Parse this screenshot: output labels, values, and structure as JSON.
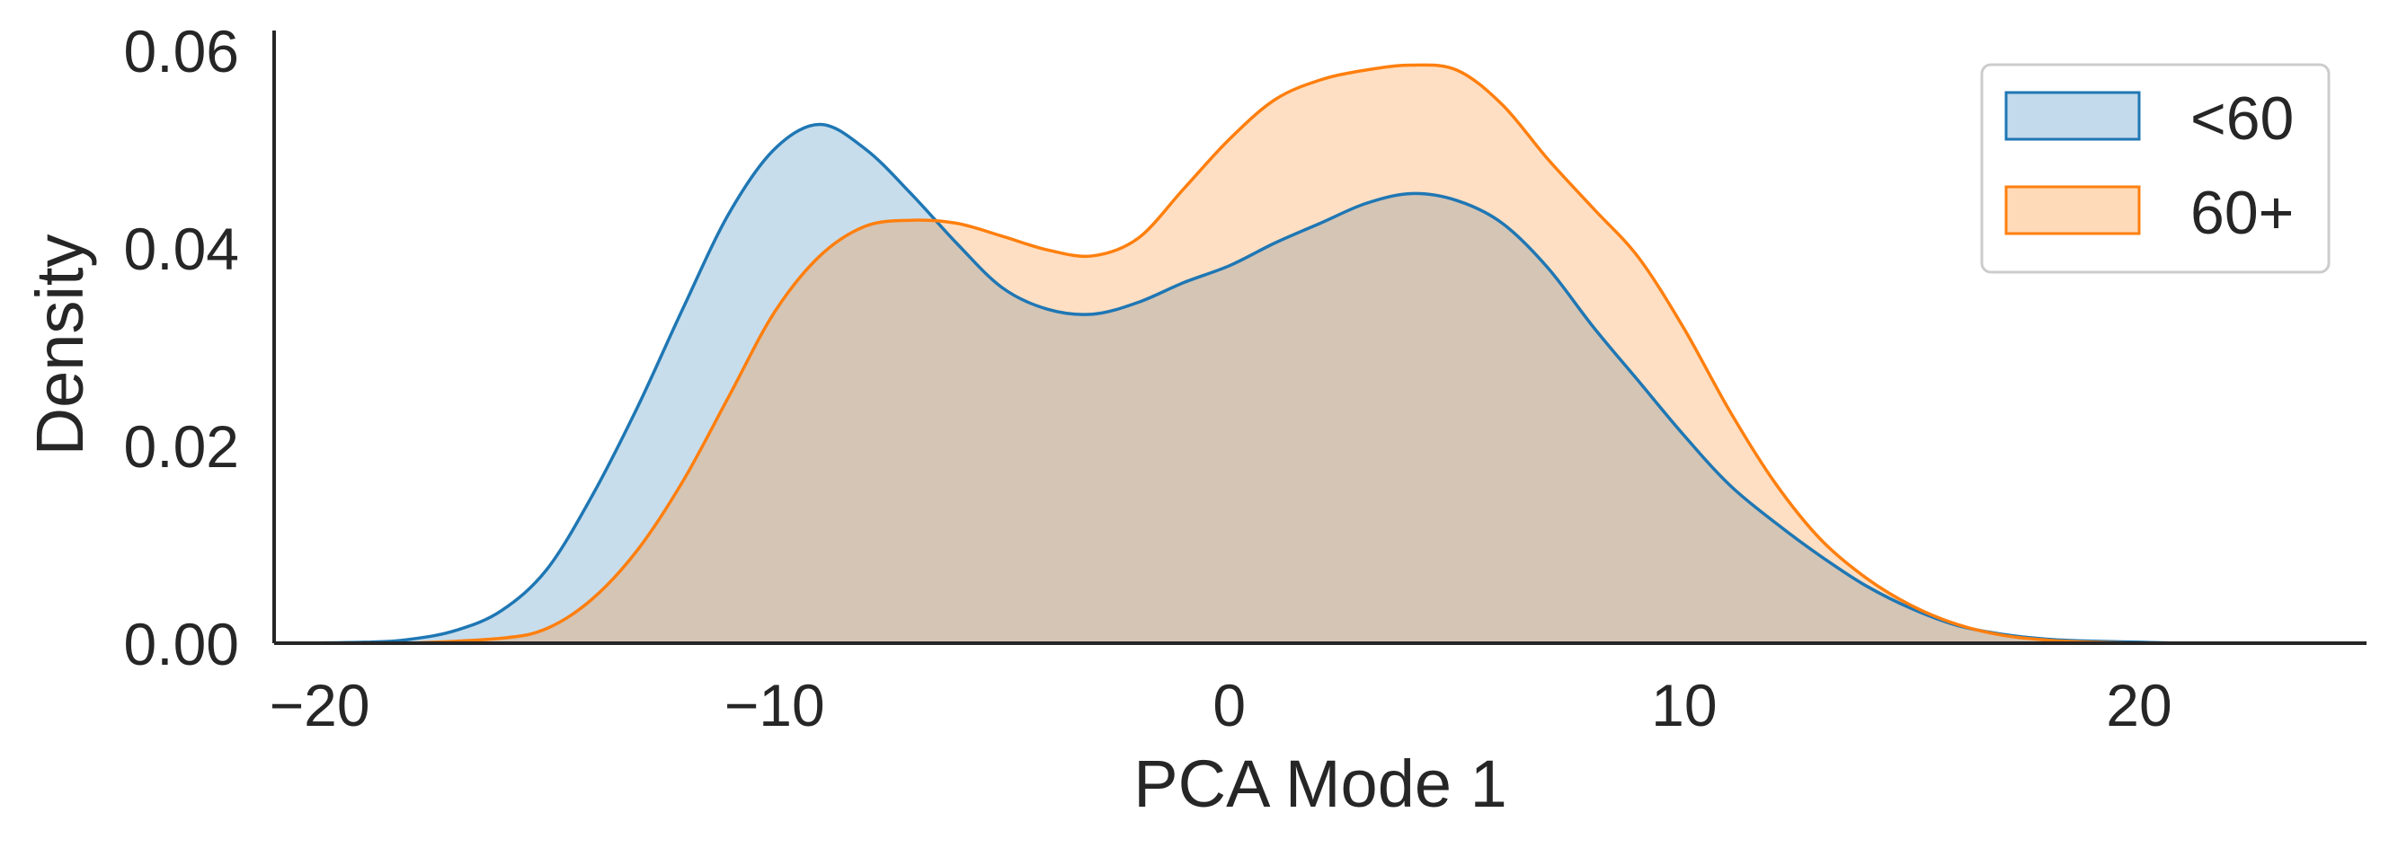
{
  "chart_data": {
    "type": "area",
    "title": "",
    "xlabel": "PCA Mode 1",
    "ylabel": "Density",
    "xlim": [
      -21,
      25
    ],
    "ylim": [
      0,
      0.062
    ],
    "xticks": [
      -20,
      -10,
      0,
      10,
      20
    ],
    "xtick_labels": [
      "−20",
      "−10",
      "0",
      "10",
      "20"
    ],
    "yticks": [
      0.0,
      0.02,
      0.04,
      0.06
    ],
    "ytick_labels": [
      "0.00",
      "0.02",
      "0.04",
      "0.06"
    ],
    "grid": false,
    "legend_position": "top-right",
    "series": [
      {
        "name": "<60",
        "color": "#1f77b4",
        "fill": "#c3d9ec",
        "x": [
          -21,
          -19,
          -18,
          -17,
          -16,
          -15,
          -14,
          -13,
          -12,
          -11,
          -10,
          -9,
          -8,
          -7,
          -6,
          -5,
          -4,
          -3,
          -2,
          -1,
          0,
          1,
          2,
          3,
          4,
          5,
          6,
          7,
          8,
          9,
          10,
          11,
          12,
          13,
          14,
          15,
          16,
          17,
          18,
          19,
          20,
          21,
          22,
          24
        ],
        "y": [
          0.0,
          0.0001,
          0.0004,
          0.0013,
          0.0033,
          0.0075,
          0.015,
          0.024,
          0.034,
          0.0435,
          0.05,
          0.0525,
          0.05,
          0.0455,
          0.0405,
          0.036,
          0.0338,
          0.0333,
          0.0345,
          0.0365,
          0.0382,
          0.0405,
          0.0425,
          0.0445,
          0.0455,
          0.0448,
          0.0425,
          0.038,
          0.032,
          0.0265,
          0.021,
          0.016,
          0.0122,
          0.0088,
          0.0058,
          0.0035,
          0.0018,
          0.0009,
          0.0004,
          0.0002,
          0.0001,
          0.0,
          0.0,
          0.0
        ]
      },
      {
        "name": "60+",
        "color": "#ff7f0e",
        "fill": "#ffdab9",
        "x": [
          -18,
          -16,
          -15,
          -14,
          -13,
          -12,
          -11,
          -10,
          -9,
          -8,
          -7,
          -6,
          -5,
          -4,
          -3,
          -2,
          -1,
          0,
          1,
          2,
          3,
          4,
          5,
          6,
          7,
          8,
          9,
          10,
          11,
          12,
          13,
          14,
          15,
          16,
          17,
          18,
          19,
          20
        ],
        "y": [
          0.0,
          0.0005,
          0.0015,
          0.0045,
          0.0095,
          0.0165,
          0.025,
          0.0335,
          0.0392,
          0.0422,
          0.0428,
          0.0425,
          0.0412,
          0.0398,
          0.0392,
          0.041,
          0.046,
          0.051,
          0.055,
          0.057,
          0.058,
          0.0585,
          0.058,
          0.0545,
          0.049,
          0.044,
          0.039,
          0.0318,
          0.0235,
          0.0162,
          0.0105,
          0.0066,
          0.0038,
          0.0019,
          0.0008,
          0.0003,
          0.0001,
          0.0
        ]
      }
    ]
  }
}
